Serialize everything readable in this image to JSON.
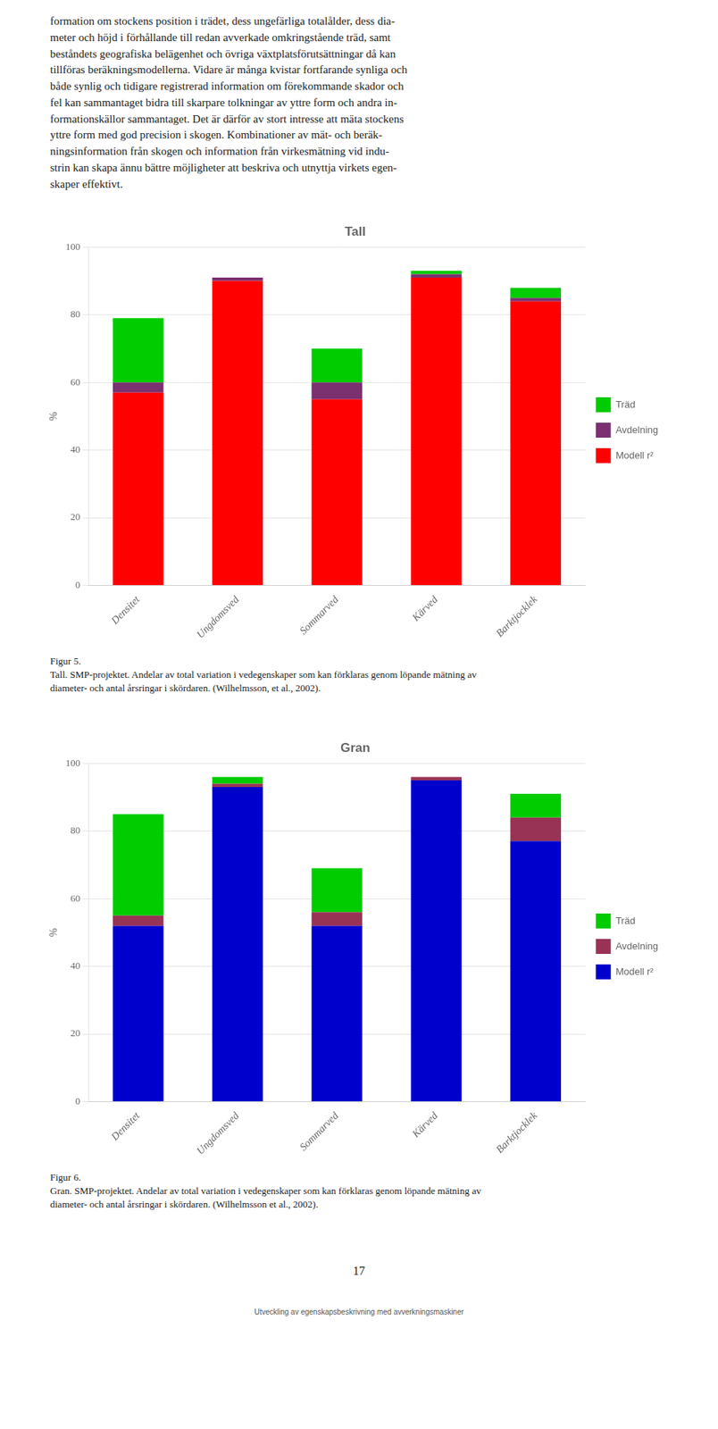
{
  "chart_data": [
    {
      "type": "bar",
      "title": "Tall",
      "categories": [
        "Densitet",
        "Ungdomsved",
        "Sommarved",
        "Kärved",
        "Barktjocklek"
      ],
      "series": [
        {
          "name": "Modell r²",
          "color": "#FF0000",
          "values": [
            57,
            90,
            55,
            91,
            84
          ]
        },
        {
          "name": "Avdelning",
          "color": "#7B3070",
          "values": [
            3,
            1,
            5,
            1,
            1
          ]
        },
        {
          "name": "Träd",
          "color": "#00CC00",
          "values": [
            19,
            0,
            10,
            1,
            3
          ]
        }
      ],
      "ylabel": "%",
      "ylim": [
        0,
        100
      ],
      "yticks": [
        0,
        20,
        40,
        60,
        80,
        100
      ],
      "grid": true,
      "stacked": true,
      "legend": "right",
      "annotations": [
        "Figur 5.",
        "Tall. SMP-projektet. Andelar av total variation i vedegenskaper som kan förklaras genom löpande mätning av",
        "diameter- och antal årsringar i skördaren. (Wilhelmsson, et al., 2002)."
      ]
    },
    {
      "type": "bar",
      "title": "Gran",
      "categories": [
        "Densitet",
        "Ungdomsved",
        "Sommarved",
        "Kärved",
        "Barktjocklek"
      ],
      "series": [
        {
          "name": "Modell r²",
          "color": "#0000CC",
          "values": [
            52,
            93,
            52,
            95,
            77
          ]
        },
        {
          "name": "Avdelning",
          "color": "#993355",
          "values": [
            3,
            1,
            4,
            1,
            7
          ]
        },
        {
          "name": "Träd",
          "color": "#00CC00",
          "values": [
            30,
            2,
            13,
            0,
            7
          ]
        }
      ],
      "ylabel": "%",
      "ylim": [
        0,
        100
      ],
      "yticks": [
        0,
        20,
        40,
        60,
        80,
        100
      ],
      "grid": true,
      "stacked": true,
      "legend": "right",
      "annotations": [
        "Figur 6.",
        "Gran. SMP-projektet. Andelar av total variation i vedegenskaper som kan förklaras genom löpande mätning av",
        "diameter- och antal årsringar i skördaren. (Wilhelmsson et al., 2002)."
      ]
    }
  ],
  "annotations": [
    [
      "formation om stockens position i trädet, dess ungefärliga totalålder, dess dia-",
      "meter och höjd i förhållande till redan avverkade omkringstående träd, samt",
      "beståndets geografiska belägenhet och övriga växtplatsförutsättningar då kan",
      "tillföras beräkningsmodellerna. Vidare är många kvistar fortfarande synliga och",
      "både synlig och tidigare registrerad information om förekommande skador och",
      "fel kan sammantaget bidra till skarpare tolkningar av yttre form och andra in-",
      "formationskällor sammantaget. Det är därför av stort intresse att mäta stockens",
      "yttre form med god precision i skogen. Kombinationer av mät- och beräk-",
      "ningsinformation från skogen och information från virkesmätning vid indu-",
      "strin kan skapa ännu bättre möjligheter att beskriva och utnyttja virkets egen-",
      "skaper effektivt."
    ],
    [
      "17",
      "Utveckling av egenskapsbeskrivning med avverkningsmaskiner"
    ]
  ]
}
